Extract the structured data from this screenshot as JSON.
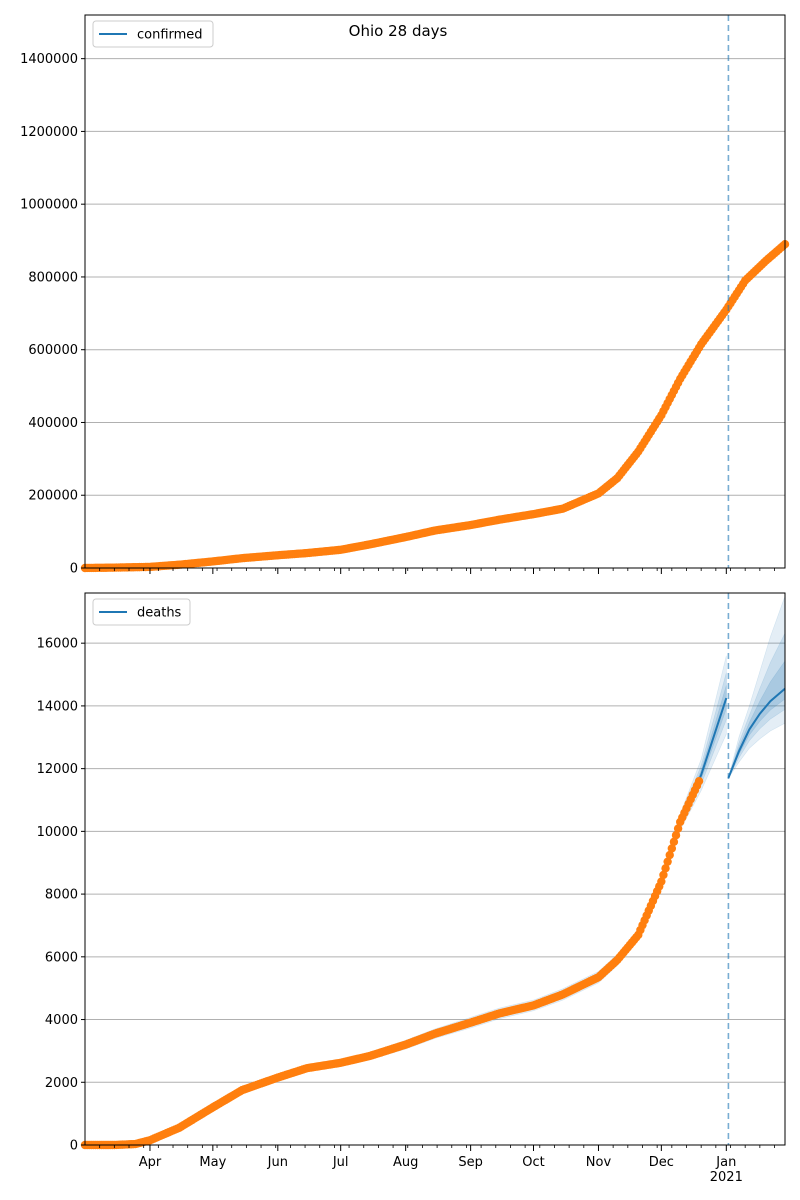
{
  "colors": {
    "observed": "#ff7f0e",
    "model": "#1f77b4",
    "band": "#1f77b4",
    "grid": "#b0b0b0"
  },
  "chart_data": [
    {
      "type": "scatter",
      "panel": "top",
      "title": "Ohio 28 days",
      "legend": {
        "labels": [
          "confirmed"
        ],
        "placement": "top-left"
      },
      "xlim": [
        "2020-03-01",
        "2021-01-29"
      ],
      "ylim": [
        0,
        1520000
      ],
      "yticks": [
        0,
        200000,
        400000,
        600000,
        800000,
        1000000,
        1200000,
        1400000
      ],
      "ytick_labels": [
        "0",
        "200000",
        "400000",
        "600000",
        "800000",
        "1000000",
        "1200000",
        "1400000"
      ],
      "grid": "horizontal",
      "forecast_start_line": "2021-01-02",
      "series": [
        {
          "name": "confirmed",
          "kind": "observed",
          "x": [
            "2020-03-01",
            "2020-03-15",
            "2020-04-01",
            "2020-04-15",
            "2020-05-01",
            "2020-05-15",
            "2020-06-01",
            "2020-06-15",
            "2020-07-01",
            "2020-07-15",
            "2020-08-01",
            "2020-08-15",
            "2020-09-01",
            "2020-09-15",
            "2020-10-01",
            "2020-10-15",
            "2020-11-01",
            "2020-11-10",
            "2020-11-20",
            "2020-12-01",
            "2020-12-10",
            "2020-12-20",
            "2021-01-01",
            "2021-01-10",
            "2021-01-20",
            "2021-01-29"
          ],
          "y": [
            0,
            1000,
            3000,
            9000,
            18000,
            27000,
            35000,
            41000,
            50000,
            65000,
            85000,
            103000,
            118000,
            133000,
            148000,
            163000,
            205000,
            247000,
            320000,
            420000,
            520000,
            615000,
            710000,
            790000,
            845000,
            890000
          ]
        }
      ]
    },
    {
      "type": "scatter",
      "panel": "bottom",
      "legend": {
        "labels": [
          "deaths"
        ],
        "placement": "top-left"
      },
      "xlim": [
        "2020-03-01",
        "2021-01-29"
      ],
      "ylim": [
        0,
        17600
      ],
      "yticks": [
        0,
        2000,
        4000,
        6000,
        8000,
        10000,
        12000,
        14000,
        16000
      ],
      "ytick_labels": [
        "0",
        "2000",
        "4000",
        "6000",
        "8000",
        "10000",
        "12000",
        "14000",
        "16000"
      ],
      "xtick_labels": [
        "Apr",
        "May",
        "Jun",
        "Jul",
        "Aug",
        "Sep",
        "Oct",
        "Nov",
        "Dec",
        "Jan\n2021"
      ],
      "grid": "horizontal",
      "forecast_start_line": "2021-01-02",
      "series": [
        {
          "name": "deaths",
          "kind": "observed",
          "x": [
            "2020-03-01",
            "2020-03-15",
            "2020-03-25",
            "2020-04-01",
            "2020-04-15",
            "2020-05-01",
            "2020-05-15",
            "2020-06-01",
            "2020-06-15",
            "2020-07-01",
            "2020-07-15",
            "2020-08-01",
            "2020-08-15",
            "2020-09-01",
            "2020-09-15",
            "2020-10-01",
            "2020-10-15",
            "2020-11-01",
            "2020-11-10",
            "2020-11-20",
            "2020-12-01",
            "2020-12-10",
            "2020-12-19"
          ],
          "y": [
            0,
            0,
            30,
            150,
            550,
            1200,
            1750,
            2150,
            2450,
            2620,
            2840,
            3200,
            3550,
            3900,
            4200,
            4450,
            4800,
            5350,
            5900,
            6700,
            8400,
            10300,
            11600
          ]
        },
        {
          "name": "deaths model",
          "kind": "model",
          "x": [
            "2020-03-01",
            "2020-03-15",
            "2020-03-25",
            "2020-04-01",
            "2020-04-15",
            "2020-05-01",
            "2020-05-15",
            "2020-06-01",
            "2020-06-15",
            "2020-07-01",
            "2020-07-15",
            "2020-08-01",
            "2020-08-15",
            "2020-09-01",
            "2020-09-15",
            "2020-10-01",
            "2020-10-15",
            "2020-11-01",
            "2020-11-10",
            "2020-11-20",
            "2020-12-01",
            "2020-12-10",
            "2020-12-20",
            "2021-01-01"
          ],
          "y": [
            0,
            0,
            30,
            150,
            550,
            1200,
            1750,
            2150,
            2450,
            2620,
            2840,
            3200,
            3550,
            3900,
            4200,
            4450,
            4800,
            5350,
            5900,
            6700,
            8400,
            10300,
            11800,
            14250
          ],
          "lower": [
            0,
            0,
            20,
            120,
            500,
            1120,
            1650,
            2050,
            2350,
            2520,
            2720,
            3060,
            3400,
            3730,
            4030,
            4280,
            4620,
            5170,
            5720,
            6520,
            8200,
            10050,
            11300,
            13100
          ],
          "upper": [
            0,
            0,
            40,
            180,
            600,
            1280,
            1850,
            2250,
            2550,
            2720,
            2960,
            3340,
            3700,
            4070,
            4370,
            4620,
            4980,
            5530,
            6080,
            6880,
            8600,
            10550,
            12300,
            15600
          ]
        },
        {
          "name": "deaths forecast",
          "kind": "forecast",
          "x": [
            "2021-01-02",
            "2021-01-07",
            "2021-01-12",
            "2021-01-17",
            "2021-01-22",
            "2021-01-29"
          ],
          "y": [
            11700,
            12550,
            13250,
            13750,
            14150,
            14550
          ],
          "lower": [
            11700,
            12200,
            12650,
            12950,
            13200,
            13450
          ],
          "upper": [
            11700,
            13000,
            14000,
            15100,
            16200,
            17500
          ]
        }
      ]
    }
  ]
}
